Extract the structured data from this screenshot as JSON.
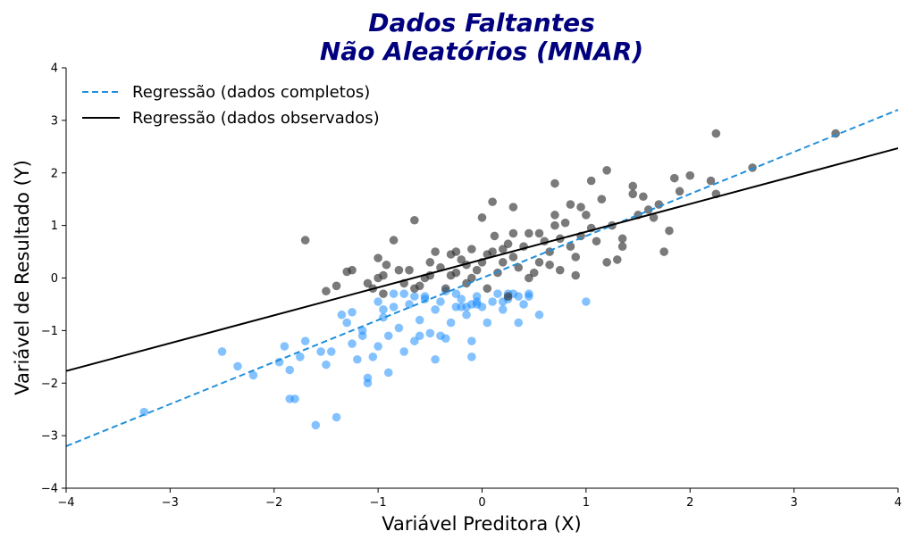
{
  "chart_data": {
    "type": "scatter",
    "title_line1": "Dados Faltantes",
    "title_line2": "Não Aleatórios (MNAR)",
    "xlabel": "Variável Preditora (X)",
    "ylabel": "Variável de Resultado (Y)",
    "xlim": [
      -4,
      4
    ],
    "ylim": [
      -4,
      4
    ],
    "xticks": [
      -4,
      -3,
      -2,
      -1,
      0,
      1,
      2,
      3,
      4
    ],
    "yticks": [
      -4,
      -3,
      -2,
      -1,
      0,
      1,
      2,
      3,
      4
    ],
    "xtick_labels": [
      "−4",
      "−3",
      "−2",
      "−1",
      "0",
      "1",
      "2",
      "3",
      "4"
    ],
    "ytick_labels": [
      "−4",
      "−3",
      "−2",
      "−1",
      "0",
      "1",
      "2",
      "3",
      "4"
    ],
    "grid": false,
    "legend_placement": "top-left",
    "lines": [
      {
        "name": "Regressão (dados completos)",
        "style": "dashed",
        "color": "#1f8fdb",
        "x": [
          -4,
          4
        ],
        "y": [
          -3.2,
          3.2
        ]
      },
      {
        "name": "Regressão (dados observados)",
        "style": "solid",
        "color": "#000000",
        "x": [
          -4,
          4
        ],
        "y": [
          -1.77,
          2.47
        ]
      }
    ],
    "series": [
      {
        "label": "observed",
        "color": "#333333",
        "points": [
          [
            -1.7,
            0.72
          ],
          [
            -1.25,
            0.15
          ],
          [
            -1.3,
            0.12
          ],
          [
            -1.5,
            -0.25
          ],
          [
            -1.4,
            -0.15
          ],
          [
            -1.1,
            -0.1
          ],
          [
            -1.05,
            -0.2
          ],
          [
            -1.0,
            0.0
          ],
          [
            -0.95,
            0.05
          ],
          [
            -0.95,
            -0.3
          ],
          [
            -1.0,
            0.38
          ],
          [
            -0.92,
            0.25
          ],
          [
            -0.85,
            0.72
          ],
          [
            -0.8,
            0.15
          ],
          [
            -0.75,
            -0.1
          ],
          [
            -0.7,
            0.15
          ],
          [
            -0.65,
            -0.2
          ],
          [
            -0.6,
            -0.15
          ],
          [
            -0.55,
            0.0
          ],
          [
            -0.5,
            0.05
          ],
          [
            -0.5,
            0.3
          ],
          [
            -0.45,
            0.5
          ],
          [
            -0.4,
            0.2
          ],
          [
            -0.35,
            -0.2
          ],
          [
            -0.3,
            0.05
          ],
          [
            -0.3,
            0.45
          ],
          [
            -0.25,
            0.1
          ],
          [
            -0.2,
            0.35
          ],
          [
            -0.15,
            0.25
          ],
          [
            -0.1,
            0.55
          ],
          [
            -0.05,
            0.15
          ],
          [
            0.0,
            0.3
          ],
          [
            0.05,
            -0.2
          ],
          [
            0.1,
            0.5
          ],
          [
            0.12,
            0.8
          ],
          [
            0.15,
            0.1
          ],
          [
            0.2,
            0.3
          ],
          [
            0.25,
            0.65
          ],
          [
            0.3,
            0.4
          ],
          [
            0.35,
            0.2
          ],
          [
            0.4,
            0.6
          ],
          [
            0.45,
            0.85
          ],
          [
            0.5,
            0.1
          ],
          [
            0.55,
            0.3
          ],
          [
            0.6,
            0.7
          ],
          [
            0.65,
            0.5
          ],
          [
            0.7,
            1.0
          ],
          [
            0.75,
            0.75
          ],
          [
            0.8,
            1.05
          ],
          [
            0.85,
            0.6
          ],
          [
            0.9,
            0.4
          ],
          [
            0.95,
            0.8
          ],
          [
            1.0,
            1.2
          ],
          [
            1.05,
            0.95
          ],
          [
            1.1,
            0.7
          ],
          [
            1.15,
            1.5
          ],
          [
            1.2,
            0.3
          ],
          [
            1.25,
            1.0
          ],
          [
            1.3,
            0.35
          ],
          [
            1.35,
            0.6
          ],
          [
            1.45,
            1.6
          ],
          [
            1.5,
            1.2
          ],
          [
            1.6,
            1.3
          ],
          [
            1.7,
            1.4
          ],
          [
            1.75,
            0.5
          ],
          [
            1.8,
            0.9
          ],
          [
            1.85,
            1.9
          ],
          [
            1.9,
            1.65
          ],
          [
            2.2,
            1.85
          ],
          [
            2.25,
            1.6
          ],
          [
            2.25,
            2.75
          ],
          [
            2.6,
            2.1
          ],
          [
            3.4,
            2.75
          ],
          [
            0.0,
            1.15
          ],
          [
            0.1,
            1.45
          ],
          [
            -0.25,
            0.5
          ],
          [
            0.2,
            0.55
          ],
          [
            -0.1,
            0.0
          ],
          [
            0.05,
            0.45
          ],
          [
            0.3,
            0.85
          ],
          [
            0.65,
            0.25
          ],
          [
            0.75,
            0.15
          ],
          [
            0.9,
            0.05
          ],
          [
            0.55,
            0.85
          ],
          [
            0.7,
            1.2
          ],
          [
            0.95,
            1.35
          ],
          [
            1.05,
            1.85
          ],
          [
            1.2,
            2.05
          ],
          [
            1.45,
            1.75
          ],
          [
            0.85,
            1.4
          ],
          [
            -0.65,
            1.1
          ],
          [
            0.3,
            1.35
          ],
          [
            0.7,
            1.8
          ],
          [
            1.55,
            1.55
          ],
          [
            1.65,
            1.15
          ],
          [
            2.0,
            1.95
          ],
          [
            1.35,
            0.75
          ],
          [
            0.25,
            -0.35
          ],
          [
            0.45,
            0.0
          ],
          [
            -0.15,
            -0.1
          ]
        ]
      },
      {
        "label": "missing",
        "color": "#1f8fff",
        "points": [
          [
            -3.25,
            -2.55
          ],
          [
            -2.5,
            -1.4
          ],
          [
            -2.35,
            -1.68
          ],
          [
            -2.2,
            -1.85
          ],
          [
            -1.95,
            -1.6
          ],
          [
            -1.9,
            -1.3
          ],
          [
            -1.85,
            -1.75
          ],
          [
            -1.8,
            -2.3
          ],
          [
            -1.75,
            -1.5
          ],
          [
            -1.7,
            -1.2
          ],
          [
            -1.6,
            -2.8
          ],
          [
            -1.55,
            -1.4
          ],
          [
            -1.5,
            -1.65
          ],
          [
            -1.45,
            -1.4
          ],
          [
            -1.4,
            -2.65
          ],
          [
            -1.35,
            -0.7
          ],
          [
            -1.3,
            -0.85
          ],
          [
            -1.25,
            -1.25
          ],
          [
            -1.2,
            -1.55
          ],
          [
            -1.15,
            -1.0
          ],
          [
            -1.1,
            -1.9
          ],
          [
            -1.1,
            -2.0
          ],
          [
            -1.05,
            -1.5
          ],
          [
            -1.0,
            -1.3
          ],
          [
            -0.95,
            -0.75
          ],
          [
            -0.9,
            -1.1
          ],
          [
            -0.9,
            -1.8
          ],
          [
            -0.85,
            -0.55
          ],
          [
            -0.8,
            -0.95
          ],
          [
            -0.75,
            -1.4
          ],
          [
            -0.7,
            -0.5
          ],
          [
            -0.65,
            -1.2
          ],
          [
            -0.6,
            -0.8
          ],
          [
            -0.55,
            -0.35
          ],
          [
            -0.5,
            -1.05
          ],
          [
            -0.45,
            -0.6
          ],
          [
            -0.45,
            -1.55
          ],
          [
            -0.4,
            -0.45
          ],
          [
            -0.35,
            -1.15
          ],
          [
            -0.3,
            -0.85
          ],
          [
            -0.25,
            -0.55
          ],
          [
            -0.2,
            -0.4
          ],
          [
            -0.15,
            -0.7
          ],
          [
            -0.1,
            -1.2
          ],
          [
            -0.1,
            -0.5
          ],
          [
            -0.05,
            -0.35
          ],
          [
            0.0,
            -0.55
          ],
          [
            0.05,
            -0.85
          ],
          [
            0.1,
            -0.45
          ],
          [
            0.15,
            -0.3
          ],
          [
            0.2,
            -0.6
          ],
          [
            0.25,
            -0.4
          ],
          [
            0.3,
            -0.3
          ],
          [
            0.35,
            -0.85
          ],
          [
            0.4,
            -0.5
          ],
          [
            0.45,
            -0.35
          ],
          [
            0.55,
            -0.7
          ],
          [
            1.0,
            -0.45
          ],
          [
            -0.1,
            -1.5
          ],
          [
            -0.65,
            -0.35
          ],
          [
            -1.25,
            -0.65
          ],
          [
            -1.0,
            -0.45
          ],
          [
            -0.85,
            -0.3
          ],
          [
            -0.05,
            -0.5
          ],
          [
            0.2,
            -0.45
          ],
          [
            -0.55,
            -0.4
          ],
          [
            -0.35,
            -0.25
          ],
          [
            -0.25,
            -0.3
          ],
          [
            -0.15,
            -0.55
          ],
          [
            -0.05,
            -0.45
          ],
          [
            0.25,
            -0.3
          ],
          [
            0.35,
            -0.35
          ],
          [
            0.45,
            -0.3
          ],
          [
            -1.85,
            -2.3
          ],
          [
            -0.75,
            -0.3
          ],
          [
            -0.4,
            -1.1
          ],
          [
            -0.6,
            -1.1
          ],
          [
            -1.15,
            -1.1
          ],
          [
            -0.95,
            -0.6
          ],
          [
            -0.2,
            -0.55
          ]
        ]
      }
    ]
  }
}
